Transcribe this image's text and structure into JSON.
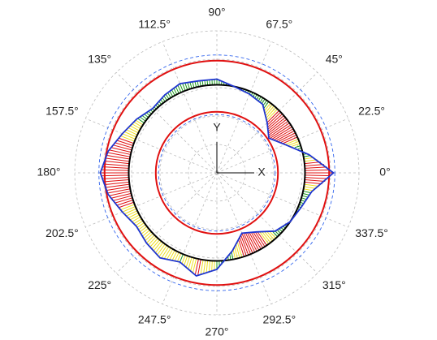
{
  "chart_data": {
    "type": "polar",
    "theta": [
      0,
      11.25,
      22.5,
      33.75,
      45,
      56.25,
      67.5,
      78.75,
      90,
      101.25,
      112.5,
      123.75,
      135,
      146.25,
      157.5,
      168.75,
      180,
      191.25,
      202.5,
      213.75,
      225,
      236.25,
      247.5,
      258.75,
      270,
      281.25,
      292.5,
      303.75,
      315,
      326.25,
      337.5,
      348.75
    ],
    "series": [
      {
        "color": "#1f35d0",
        "values": [
          4.1,
          3.3,
          2.6,
          2.2,
          2.5,
          2.9,
          3.0,
          3.1,
          3.3,
          3.3,
          3.4,
          3.3,
          3.2,
          3.4,
          3.6,
          3.9,
          4.1,
          3.9,
          3.6,
          3.4,
          3.5,
          3.6,
          3.4,
          3.7,
          3.4,
          2.8,
          2.3,
          2.5,
          2.9,
          3.1,
          3.2,
          3.4
        ]
      }
    ],
    "reference": {
      "r": 3.1,
      "color": "#000000"
    },
    "circles": [
      {
        "r": 3.95,
        "color": "#e01010",
        "dashed": false
      },
      {
        "r": 2.15,
        "color": "#e01010",
        "dashed": false
      },
      {
        "r": 4.15,
        "color": "#3366ee",
        "dashed": true
      },
      {
        "r": 2.05,
        "color": "#3366ee",
        "dashed": true
      }
    ],
    "rlim": [
      0,
      5
    ],
    "rticks": [
      1,
      2,
      3,
      4,
      5
    ],
    "thetaticks": [
      {
        "value": 0,
        "label": "0°"
      },
      {
        "value": 22.5,
        "label": "22.5°"
      },
      {
        "value": 45,
        "label": "45°"
      },
      {
        "value": 67.5,
        "label": "67.5°"
      },
      {
        "value": 90,
        "label": "90°"
      },
      {
        "value": 112.5,
        "label": "112.5°"
      },
      {
        "value": 135,
        "label": "135°"
      },
      {
        "value": 157.5,
        "label": "157.5°"
      },
      {
        "value": 180,
        "label": "180°"
      },
      {
        "value": 202.5,
        "label": "202.5°"
      },
      {
        "value": 225,
        "label": "225°"
      },
      {
        "value": 247.5,
        "label": "247.5°"
      },
      {
        "value": 270,
        "label": "270°"
      },
      {
        "value": 292.5,
        "label": "292.5°"
      },
      {
        "value": 315,
        "label": "315°"
      },
      {
        "value": 337.5,
        "label": "337.5°"
      }
    ],
    "x_label": "X",
    "y_label": "Y",
    "grid": true
  }
}
